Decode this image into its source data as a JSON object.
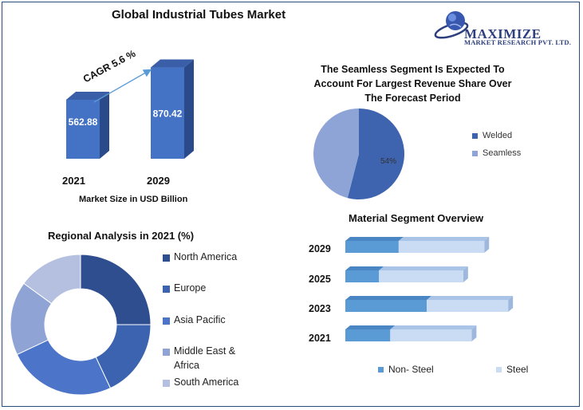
{
  "header": {
    "title": "Global Industrial Tubes Market"
  },
  "logo": {
    "name": "MAXIMIZE",
    "subtitle": "MARKET RESEARCH PVT. LTD."
  },
  "colors": {
    "bar_front": "#4472c4",
    "bar_side": "#2b4a8a",
    "bar_top": "#3a5fa8",
    "welded": "#3e64b0",
    "seamless": "#8ea4d6",
    "non_steel": "#5b9bd5",
    "steel": "#c9dcf3",
    "north_america": "#2f4e8f",
    "europe": "#3c63b0",
    "asia_pacific": "#4c74c9",
    "middle_east_africa": "#8fa3d4",
    "south_america": "#b5c0e0"
  },
  "market_size": {
    "cagr_label": "CAGR 5.6 %",
    "caption": "Market Size in USD Billion",
    "chart_data": {
      "type": "bar",
      "categories": [
        "2021",
        "2029"
      ],
      "values": [
        562.88,
        870.42
      ],
      "value_labels": [
        "562.88",
        "870.42"
      ],
      "xlabel": "Market Size in USD Billion"
    }
  },
  "segment_pie": {
    "title_lines": [
      "The Seamless Segment Is Expected To",
      "Account For Largest Revenue Share Over",
      "The Forecast Period"
    ],
    "slice_label": "54%",
    "legend": [
      "Welded",
      "Seamless"
    ],
    "chart_data": {
      "type": "pie",
      "labels": [
        "Welded",
        "Seamless"
      ],
      "values": [
        54,
        46
      ]
    }
  },
  "regional": {
    "title": "Regional Analysis in 2021 (%)",
    "legend": [
      "North America",
      "Europe",
      "Asia Pacific",
      "Middle East &",
      "Africa",
      "South America"
    ],
    "chart_data": {
      "type": "pie",
      "labels": [
        "North America",
        "Europe",
        "Asia Pacific",
        "Middle East & Africa",
        "South America"
      ],
      "values": [
        25,
        18,
        25,
        17,
        15
      ]
    }
  },
  "material": {
    "title": "Material Segment Overview",
    "years": [
      "2029",
      "2025",
      "2023",
      "2021"
    ],
    "legend": [
      "Non- Steel",
      "Steel"
    ],
    "chart_data": {
      "type": "bar",
      "orientation": "horizontal",
      "stacked": true,
      "categories": [
        "2029",
        "2025",
        "2023",
        "2021"
      ],
      "series": [
        {
          "name": "Non- Steel",
          "values": [
            38,
            24,
            58,
            32
          ]
        },
        {
          "name": "Steel",
          "values": [
            61,
            60,
            58,
            58
          ]
        }
      ]
    }
  }
}
